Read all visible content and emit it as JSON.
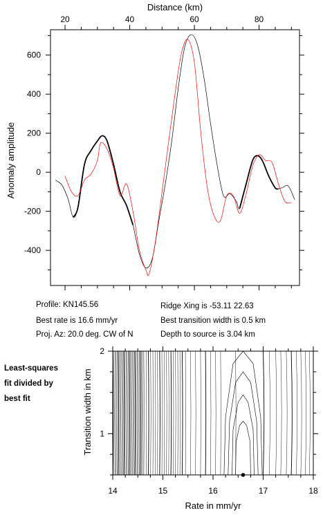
{
  "chart_data": [
    {
      "type": "line",
      "xlabel": "Distance (km)",
      "ylabel": "Anomaly amplitude",
      "xlim": [
        15.5,
        92.5
      ],
      "ylim": [
        -580,
        730
      ],
      "xticks": [
        20,
        40,
        60,
        80
      ],
      "yticks": [
        -400,
        -200,
        0,
        200,
        400,
        600
      ],
      "x_axis_position": "top",
      "grid": false,
      "series": [
        {
          "color": "#000000",
          "style": "thin",
          "points": [
            [
              17,
              -40
            ],
            [
              19,
              -65
            ],
            [
              21,
              -140
            ],
            [
              22.5,
              -230
            ],
            [
              24,
              -180
            ],
            [
              26,
              40
            ],
            [
              28,
              110
            ],
            [
              30,
              160
            ],
            [
              31.5,
              187
            ],
            [
              33,
              160
            ],
            [
              35,
              40
            ],
            [
              37,
              -100
            ],
            [
              39,
              -170
            ],
            [
              41,
              -270
            ],
            [
              43,
              -420
            ],
            [
              45,
              -490
            ],
            [
              47,
              -440
            ],
            [
              49,
              -250
            ],
            [
              51,
              -60
            ],
            [
              53,
              160
            ],
            [
              55,
              430
            ],
            [
              57,
              640
            ],
            [
              59,
              705
            ],
            [
              61,
              650
            ],
            [
              63,
              480
            ],
            [
              65,
              250
            ],
            [
              67,
              40
            ],
            [
              69,
              -120
            ],
            [
              71,
              -110
            ],
            [
              73,
              -150
            ],
            [
              74,
              -185
            ],
            [
              76,
              -60
            ],
            [
              78,
              60
            ],
            [
              79.5,
              85
            ],
            [
              81,
              60
            ],
            [
              83,
              -20
            ],
            [
              85,
              -80
            ],
            [
              87,
              -80
            ],
            [
              89,
              -70
            ],
            [
              91,
              -140
            ]
          ]
        },
        {
          "color": "#000000",
          "style": "bold",
          "points": [
            [
              22.5,
              -230
            ],
            [
              24,
              -180
            ],
            [
              26,
              40
            ],
            [
              28,
              110
            ],
            [
              30,
              160
            ],
            [
              31.5,
              187
            ],
            [
              33,
              160
            ],
            [
              35,
              40
            ],
            [
              37,
              -100
            ],
            [
              39,
              -170
            ],
            [
              41,
              -270
            ]
          ]
        },
        {
          "color": "#000000",
          "style": "bold",
          "points": [
            [
              74,
              -185
            ],
            [
              76,
              -60
            ],
            [
              78,
              60
            ],
            [
              79.5,
              85
            ],
            [
              81,
              60
            ],
            [
              83,
              -20
            ],
            [
              85,
              -80
            ],
            [
              86,
              -85
            ]
          ]
        },
        {
          "color": "#ff0000",
          "style": "thin",
          "points": [
            [
              20,
              -20
            ],
            [
              22,
              -100
            ],
            [
              24,
              -120
            ],
            [
              26,
              -40
            ],
            [
              28,
              -10
            ],
            [
              30,
              60
            ],
            [
              31,
              150
            ],
            [
              33,
              120
            ],
            [
              35,
              20
            ],
            [
              37,
              -120
            ],
            [
              39,
              -60
            ],
            [
              41,
              -200
            ],
            [
              43,
              -400
            ],
            [
              45,
              -500
            ],
            [
              46,
              -520
            ],
            [
              48,
              -350
            ],
            [
              50,
              -100
            ],
            [
              52,
              150
            ],
            [
              54,
              400
            ],
            [
              56,
              610
            ],
            [
              58,
              680
            ],
            [
              60,
              560
            ],
            [
              62,
              200
            ],
            [
              64,
              -80
            ],
            [
              66,
              -220
            ],
            [
              68,
              -250
            ],
            [
              70,
              -120
            ],
            [
              72,
              -120
            ],
            [
              74,
              -210
            ],
            [
              76,
              -110
            ],
            [
              78,
              30
            ],
            [
              80,
              90
            ],
            [
              82,
              60
            ],
            [
              84,
              50
            ],
            [
              86,
              -60
            ],
            [
              88,
              -150
            ],
            [
              90,
              -155
            ]
          ]
        }
      ]
    },
    {
      "type": "contour",
      "xlabel": "Rate in mm/yr",
      "ylabel": "Transition width in km",
      "xlim": [
        14,
        18
      ],
      "ylim": [
        0.5,
        2
      ],
      "xticks": [
        14,
        15,
        16,
        17,
        18
      ],
      "yticks": [
        1,
        2
      ],
      "best_fit_marker": {
        "rate": 16.6,
        "width": 0.5
      }
    }
  ],
  "info": {
    "profile": "Profile: KN145.56",
    "best_rate": "Best rate is 16.6 mm/yr",
    "proj_az": "Proj. Az: 20.0 deg. CW of N",
    "ridge_xing": "Ridge Xing is -53.11 22.63",
    "best_transition": "Best transition width is 0.5 km",
    "depth": "Depth to source is   3.04 km"
  },
  "side_note": [
    "Least-squares",
    "fit divided by",
    "best fit"
  ]
}
